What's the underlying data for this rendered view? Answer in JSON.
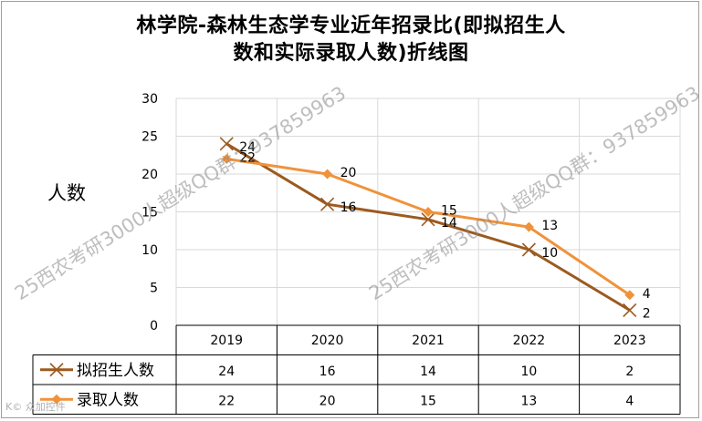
{
  "chart_data": {
    "type": "line",
    "title_line1": "林学院-森林生态学专业近年招录比(即拟招生人",
    "title_line2": "数和实际录取人数)折线图",
    "ylabel": "人数",
    "ylim": [
      0,
      30
    ],
    "yticks": [
      "0",
      "5",
      "10",
      "15",
      "20",
      "25",
      "30"
    ],
    "categories": [
      "2019",
      "2020",
      "2021",
      "2022",
      "2023"
    ],
    "grid": true,
    "legend": "data-table",
    "series": [
      {
        "name": "拟招生人数",
        "values": [
          24,
          16,
          14,
          10,
          2
        ],
        "color": "#9C5A1F",
        "marker": "x"
      },
      {
        "name": "录取人数",
        "values": [
          22,
          20,
          15,
          13,
          4
        ],
        "color": "#F0923A",
        "marker": "diamond"
      }
    ]
  },
  "watermarks": [
    "25西农考研3000人超级QQ群：937859963",
    "25西农考研3000人超级QQ群：937859963"
  ],
  "corner_mark": "K© 众加控件"
}
